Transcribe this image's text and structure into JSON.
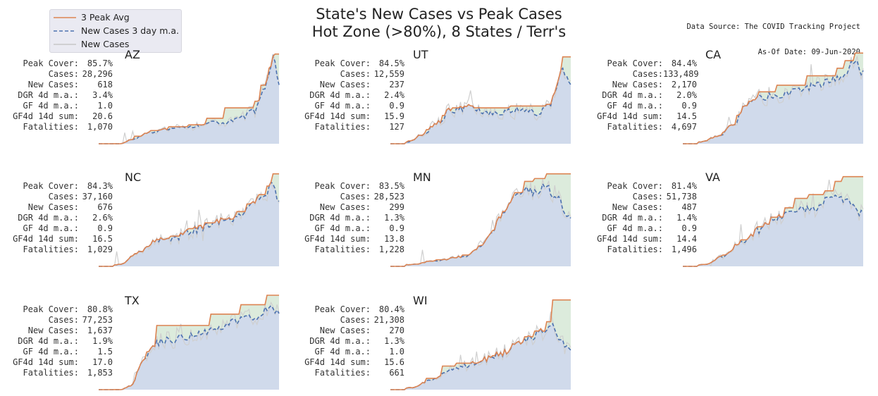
{
  "title": {
    "line1": "State's New Cases vs Peak Cases",
    "line2": "Hot Zone (>80%), 8 States / Terr's"
  },
  "source": {
    "line1": "Data Source: The COVID Tracking Project",
    "line2": "As-Of Date: 09-Jun-2020"
  },
  "legend": [
    {
      "label": "3 Peak Avg",
      "color": "#dd8452",
      "style": "solid"
    },
    {
      "label": "New Cases 3 day m.a.",
      "color": "#4c72b0",
      "style": "dashed"
    },
    {
      "label": "New Cases",
      "color": "#c8c8c8",
      "style": "solid"
    }
  ],
  "colors": {
    "peak_line": "#dd8452",
    "ma_line": "#4c72b0",
    "raw_line": "#cfcfcf",
    "cases_fill": "#d0daeb",
    "gap_fill": "#dcebdc"
  },
  "stat_labels": [
    "Peak Cover:",
    "Cases:",
    "New Cases:",
    "DGR 4d m.a.:",
    "GF 4d m.a.:",
    "GF4d 14d sum:",
    "Fatalities:"
  ],
  "chart_data": {
    "type": "line",
    "panels": [
      {
        "state": "AZ",
        "stats": [
          "85.7%",
          "28,296",
          "618",
          "3.4%",
          "1.0",
          "20.6",
          "1,070"
        ],
        "anchors": [
          [
            0,
            0
          ],
          [
            0.12,
            0
          ],
          [
            0.18,
            0.04
          ],
          [
            0.28,
            0.12
          ],
          [
            0.4,
            0.16
          ],
          [
            0.55,
            0.19
          ],
          [
            0.62,
            0.23
          ],
          [
            0.7,
            0.22
          ],
          [
            0.8,
            0.28
          ],
          [
            0.86,
            0.35
          ],
          [
            0.92,
            0.55
          ],
          [
            0.95,
            0.78
          ],
          [
            0.97,
            0.92
          ],
          [
            1,
            0.6
          ]
        ],
        "peak_steps": [
          [
            0,
            0
          ],
          [
            0.12,
            0
          ],
          [
            0.2,
            0.08
          ],
          [
            0.28,
            0.14
          ],
          [
            0.38,
            0.18
          ],
          [
            0.5,
            0.2
          ],
          [
            0.6,
            0.27
          ],
          [
            0.7,
            0.38
          ],
          [
            0.82,
            0.38
          ],
          [
            0.86,
            0.45
          ],
          [
            0.9,
            0.62
          ],
          [
            0.94,
            0.8
          ],
          [
            0.97,
            0.95
          ],
          [
            1,
            0.95
          ]
        ]
      },
      {
        "state": "UT",
        "stats": [
          "84.5%",
          "12,559",
          "237",
          "2.4%",
          "0.9",
          "15.9",
          "127"
        ],
        "anchors": [
          [
            0,
            0
          ],
          [
            0.1,
            0.02
          ],
          [
            0.18,
            0.1
          ],
          [
            0.26,
            0.22
          ],
          [
            0.33,
            0.35
          ],
          [
            0.45,
            0.38
          ],
          [
            0.55,
            0.32
          ],
          [
            0.7,
            0.36
          ],
          [
            0.82,
            0.33
          ],
          [
            0.88,
            0.4
          ],
          [
            0.92,
            0.6
          ],
          [
            0.95,
            0.82
          ],
          [
            0.97,
            0.75
          ],
          [
            1,
            0.6
          ]
        ],
        "peak_steps": [
          [
            0,
            0
          ],
          [
            0.1,
            0.03
          ],
          [
            0.2,
            0.15
          ],
          [
            0.28,
            0.3
          ],
          [
            0.34,
            0.38
          ],
          [
            0.55,
            0.38
          ],
          [
            0.66,
            0.4
          ],
          [
            0.88,
            0.42
          ],
          [
            0.92,
            0.62
          ],
          [
            0.95,
            0.92
          ],
          [
            1,
            0.92
          ]
        ]
      },
      {
        "state": "CA",
        "stats": [
          "84.4%",
          "133,489",
          "2,170",
          "2.0%",
          "0.9",
          "14.5",
          "4,697"
        ],
        "anchors": [
          [
            0,
            0
          ],
          [
            0.1,
            0.02
          ],
          [
            0.2,
            0.08
          ],
          [
            0.28,
            0.2
          ],
          [
            0.35,
            0.4
          ],
          [
            0.45,
            0.5
          ],
          [
            0.55,
            0.52
          ],
          [
            0.65,
            0.58
          ],
          [
            0.75,
            0.62
          ],
          [
            0.85,
            0.7
          ],
          [
            0.9,
            0.75
          ],
          [
            0.95,
            0.88
          ],
          [
            1,
            0.75
          ]
        ],
        "peak_steps": [
          [
            0,
            0
          ],
          [
            0.12,
            0.02
          ],
          [
            0.22,
            0.12
          ],
          [
            0.3,
            0.3
          ],
          [
            0.36,
            0.45
          ],
          [
            0.42,
            0.55
          ],
          [
            0.52,
            0.62
          ],
          [
            0.62,
            0.62
          ],
          [
            0.68,
            0.72
          ],
          [
            0.78,
            0.72
          ],
          [
            0.85,
            0.8
          ],
          [
            0.9,
            0.88
          ],
          [
            0.95,
            0.96
          ],
          [
            1,
            0.96
          ]
        ]
      },
      {
        "state": "NC",
        "stats": [
          "84.3%",
          "37,160",
          "676",
          "2.6%",
          "0.9",
          "16.5",
          "1,029"
        ],
        "anchors": [
          [
            0,
            0
          ],
          [
            0.12,
            0.02
          ],
          [
            0.22,
            0.15
          ],
          [
            0.32,
            0.28
          ],
          [
            0.42,
            0.3
          ],
          [
            0.52,
            0.38
          ],
          [
            0.6,
            0.42
          ],
          [
            0.68,
            0.48
          ],
          [
            0.75,
            0.5
          ],
          [
            0.82,
            0.6
          ],
          [
            0.88,
            0.7
          ],
          [
            0.93,
            0.78
          ],
          [
            0.96,
            0.9
          ],
          [
            1,
            0.7
          ]
        ],
        "peak_steps": [
          [
            0,
            0
          ],
          [
            0.12,
            0.02
          ],
          [
            0.22,
            0.15
          ],
          [
            0.32,
            0.28
          ],
          [
            0.4,
            0.32
          ],
          [
            0.5,
            0.4
          ],
          [
            0.58,
            0.46
          ],
          [
            0.68,
            0.5
          ],
          [
            0.76,
            0.58
          ],
          [
            0.82,
            0.66
          ],
          [
            0.88,
            0.76
          ],
          [
            0.93,
            0.85
          ],
          [
            0.96,
            0.98
          ],
          [
            1,
            0.98
          ]
        ]
      },
      {
        "state": "MN",
        "stats": [
          "83.5%",
          "28,523",
          "299",
          "1.3%",
          "0.9",
          "13.8",
          "1,228"
        ],
        "anchors": [
          [
            0,
            0
          ],
          [
            0.12,
            0.02
          ],
          [
            0.25,
            0.06
          ],
          [
            0.4,
            0.1
          ],
          [
            0.5,
            0.2
          ],
          [
            0.56,
            0.35
          ],
          [
            0.62,
            0.55
          ],
          [
            0.68,
            0.7
          ],
          [
            0.74,
            0.82
          ],
          [
            0.8,
            0.78
          ],
          [
            0.86,
            0.85
          ],
          [
            0.92,
            0.72
          ],
          [
            1,
            0.5
          ]
        ],
        "peak_steps": [
          [
            0,
            0
          ],
          [
            0.12,
            0.02
          ],
          [
            0.25,
            0.07
          ],
          [
            0.4,
            0.12
          ],
          [
            0.5,
            0.22
          ],
          [
            0.56,
            0.38
          ],
          [
            0.62,
            0.58
          ],
          [
            0.68,
            0.78
          ],
          [
            0.74,
            0.9
          ],
          [
            0.8,
            0.93
          ],
          [
            0.86,
            0.98
          ],
          [
            1,
            0.98
          ]
        ]
      },
      {
        "state": "VA",
        "stats": [
          "81.4%",
          "51,738",
          "487",
          "1.4%",
          "0.9",
          "14.4",
          "1,496"
        ],
        "anchors": [
          [
            0,
            0
          ],
          [
            0.12,
            0.02
          ],
          [
            0.22,
            0.1
          ],
          [
            0.32,
            0.25
          ],
          [
            0.42,
            0.38
          ],
          [
            0.5,
            0.5
          ],
          [
            0.58,
            0.55
          ],
          [
            0.66,
            0.6
          ],
          [
            0.74,
            0.62
          ],
          [
            0.8,
            0.7
          ],
          [
            0.86,
            0.72
          ],
          [
            0.92,
            0.68
          ],
          [
            1,
            0.55
          ]
        ],
        "peak_steps": [
          [
            0,
            0
          ],
          [
            0.12,
            0.02
          ],
          [
            0.22,
            0.12
          ],
          [
            0.32,
            0.28
          ],
          [
            0.42,
            0.42
          ],
          [
            0.5,
            0.52
          ],
          [
            0.56,
            0.62
          ],
          [
            0.62,
            0.72
          ],
          [
            0.7,
            0.76
          ],
          [
            0.78,
            0.8
          ],
          [
            0.84,
            0.9
          ],
          [
            0.88,
            0.95
          ],
          [
            1,
            0.95
          ]
        ]
      },
      {
        "state": "TX",
        "stats": [
          "80.8%",
          "77,253",
          "1,637",
          "1.9%",
          "1.5",
          "17.0",
          "1,853"
        ],
        "anchors": [
          [
            0,
            0
          ],
          [
            0.12,
            0
          ],
          [
            0.18,
            0.04
          ],
          [
            0.24,
            0.28
          ],
          [
            0.3,
            0.48
          ],
          [
            0.38,
            0.52
          ],
          [
            0.48,
            0.56
          ],
          [
            0.58,
            0.62
          ],
          [
            0.68,
            0.66
          ],
          [
            0.75,
            0.72
          ],
          [
            0.82,
            0.75
          ],
          [
            0.88,
            0.78
          ],
          [
            0.94,
            0.88
          ],
          [
            1,
            0.8
          ]
        ],
        "peak_steps": [
          [
            0,
            0
          ],
          [
            0.14,
            0
          ],
          [
            0.2,
            0.1
          ],
          [
            0.26,
            0.4
          ],
          [
            0.32,
            0.68
          ],
          [
            0.58,
            0.68
          ],
          [
            0.62,
            0.8
          ],
          [
            0.74,
            0.8
          ],
          [
            0.78,
            0.9
          ],
          [
            0.9,
            0.9
          ],
          [
            0.93,
            1.0
          ],
          [
            1,
            1.0
          ]
        ]
      },
      {
        "state": "WI",
        "stats": [
          "80.4%",
          "21,308",
          "270",
          "1.3%",
          "1.0",
          "15.6",
          "661"
        ],
        "anchors": [
          [
            0,
            0
          ],
          [
            0.12,
            0.02
          ],
          [
            0.22,
            0.1
          ],
          [
            0.32,
            0.2
          ],
          [
            0.42,
            0.25
          ],
          [
            0.52,
            0.32
          ],
          [
            0.62,
            0.38
          ],
          [
            0.7,
            0.48
          ],
          [
            0.78,
            0.55
          ],
          [
            0.84,
            0.62
          ],
          [
            0.9,
            0.68
          ],
          [
            0.95,
            0.5
          ],
          [
            1,
            0.4
          ]
        ],
        "peak_steps": [
          [
            0,
            0
          ],
          [
            0.12,
            0.02
          ],
          [
            0.2,
            0.12
          ],
          [
            0.28,
            0.25
          ],
          [
            0.36,
            0.28
          ],
          [
            0.5,
            0.3
          ],
          [
            0.56,
            0.36
          ],
          [
            0.66,
            0.44
          ],
          [
            0.74,
            0.56
          ],
          [
            0.8,
            0.62
          ],
          [
            0.86,
            0.72
          ],
          [
            0.9,
            0.95
          ],
          [
            1,
            0.95
          ]
        ]
      }
    ]
  }
}
